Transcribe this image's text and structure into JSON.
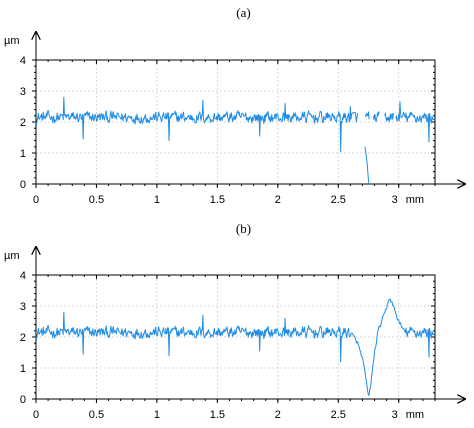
{
  "colors": {
    "series": "#1f8ce6",
    "grid": "#c0c0c0",
    "axis": "#000000"
  },
  "chart_data": [
    {
      "type": "line",
      "panel_label": "(a)",
      "y_unit": "µm",
      "x_unit": "mm",
      "xlim": [
        0,
        3.3
      ],
      "ylim": [
        0,
        4
      ],
      "x_ticks": [
        0,
        0.5,
        1,
        1.5,
        2,
        2.5,
        3
      ],
      "x_tick_labels": [
        "0",
        "0.5",
        "1",
        "1.5",
        "2",
        "2.5",
        "3"
      ],
      "y_ticks": [
        0,
        1,
        2,
        3,
        4
      ],
      "y_tick_labels": [
        "0",
        "1",
        "2",
        "3",
        "4"
      ],
      "grid": true,
      "baseline": 2.15,
      "noise": 0.16,
      "x_step": 0.005,
      "features": [
        {
          "x": 0.23,
          "y": 2.8
        },
        {
          "x": 0.39,
          "y": 1.45
        },
        {
          "x": 1.1,
          "y": 1.4
        },
        {
          "x": 1.38,
          "y": 2.7
        },
        {
          "x": 1.85,
          "y": 1.55
        },
        {
          "x": 2.06,
          "y": 2.6
        },
        {
          "x": 2.52,
          "y": 1.05
        },
        {
          "x": 2.6,
          "y": 2.5
        },
        {
          "x": 3.01,
          "y": 2.65
        },
        {
          "x": 3.25,
          "y": 1.35
        }
      ],
      "gaps": [
        [
          2.66,
          2.72
        ],
        [
          2.755,
          2.785
        ],
        [
          2.84,
          2.88
        ],
        [
          2.96,
          2.97
        ]
      ],
      "segments": [
        {
          "x": [
            2.72,
            2.725,
            2.73,
            2.735,
            2.74,
            2.745,
            2.75,
            2.755
          ],
          "y": [
            1.2,
            1.1,
            0.95,
            0.8,
            0.6,
            0.35,
            0.12,
            0.0
          ]
        }
      ]
    },
    {
      "type": "line",
      "panel_label": "(b)",
      "y_unit": "µm",
      "x_unit": "mm",
      "xlim": [
        0,
        3.3
      ],
      "ylim": [
        0,
        4
      ],
      "x_ticks": [
        0,
        0.5,
        1,
        1.5,
        2,
        2.5,
        3
      ],
      "x_tick_labels": [
        "0",
        "0.5",
        "1",
        "1.5",
        "2",
        "2.5",
        "3"
      ],
      "y_ticks": [
        0,
        1,
        2,
        3,
        4
      ],
      "y_tick_labels": [
        "0",
        "1",
        "2",
        "3",
        "4"
      ],
      "grid": true,
      "baseline": 2.15,
      "noise": 0.16,
      "x_step": 0.005,
      "features": [
        {
          "x": 0.23,
          "y": 2.8
        },
        {
          "x": 0.39,
          "y": 1.45
        },
        {
          "x": 1.1,
          "y": 1.4
        },
        {
          "x": 1.38,
          "y": 2.7
        },
        {
          "x": 1.85,
          "y": 1.55
        },
        {
          "x": 2.06,
          "y": 2.6
        },
        {
          "x": 2.52,
          "y": 1.2
        },
        {
          "x": 3.25,
          "y": 1.35
        }
      ],
      "gaps": [],
      "shape": [
        {
          "x": 2.6,
          "y": 2.15
        },
        {
          "x": 2.66,
          "y": 1.8
        },
        {
          "x": 2.7,
          "y": 1.3
        },
        {
          "x": 2.73,
          "y": 0.6
        },
        {
          "x": 2.75,
          "y": 0.05
        },
        {
          "x": 2.77,
          "y": 0.5
        },
        {
          "x": 2.8,
          "y": 1.5
        },
        {
          "x": 2.83,
          "y": 2.2
        },
        {
          "x": 2.88,
          "y": 2.7
        },
        {
          "x": 2.92,
          "y": 3.25
        },
        {
          "x": 2.95,
          "y": 3.05
        },
        {
          "x": 2.99,
          "y": 2.6
        },
        {
          "x": 3.04,
          "y": 2.2
        }
      ]
    }
  ]
}
